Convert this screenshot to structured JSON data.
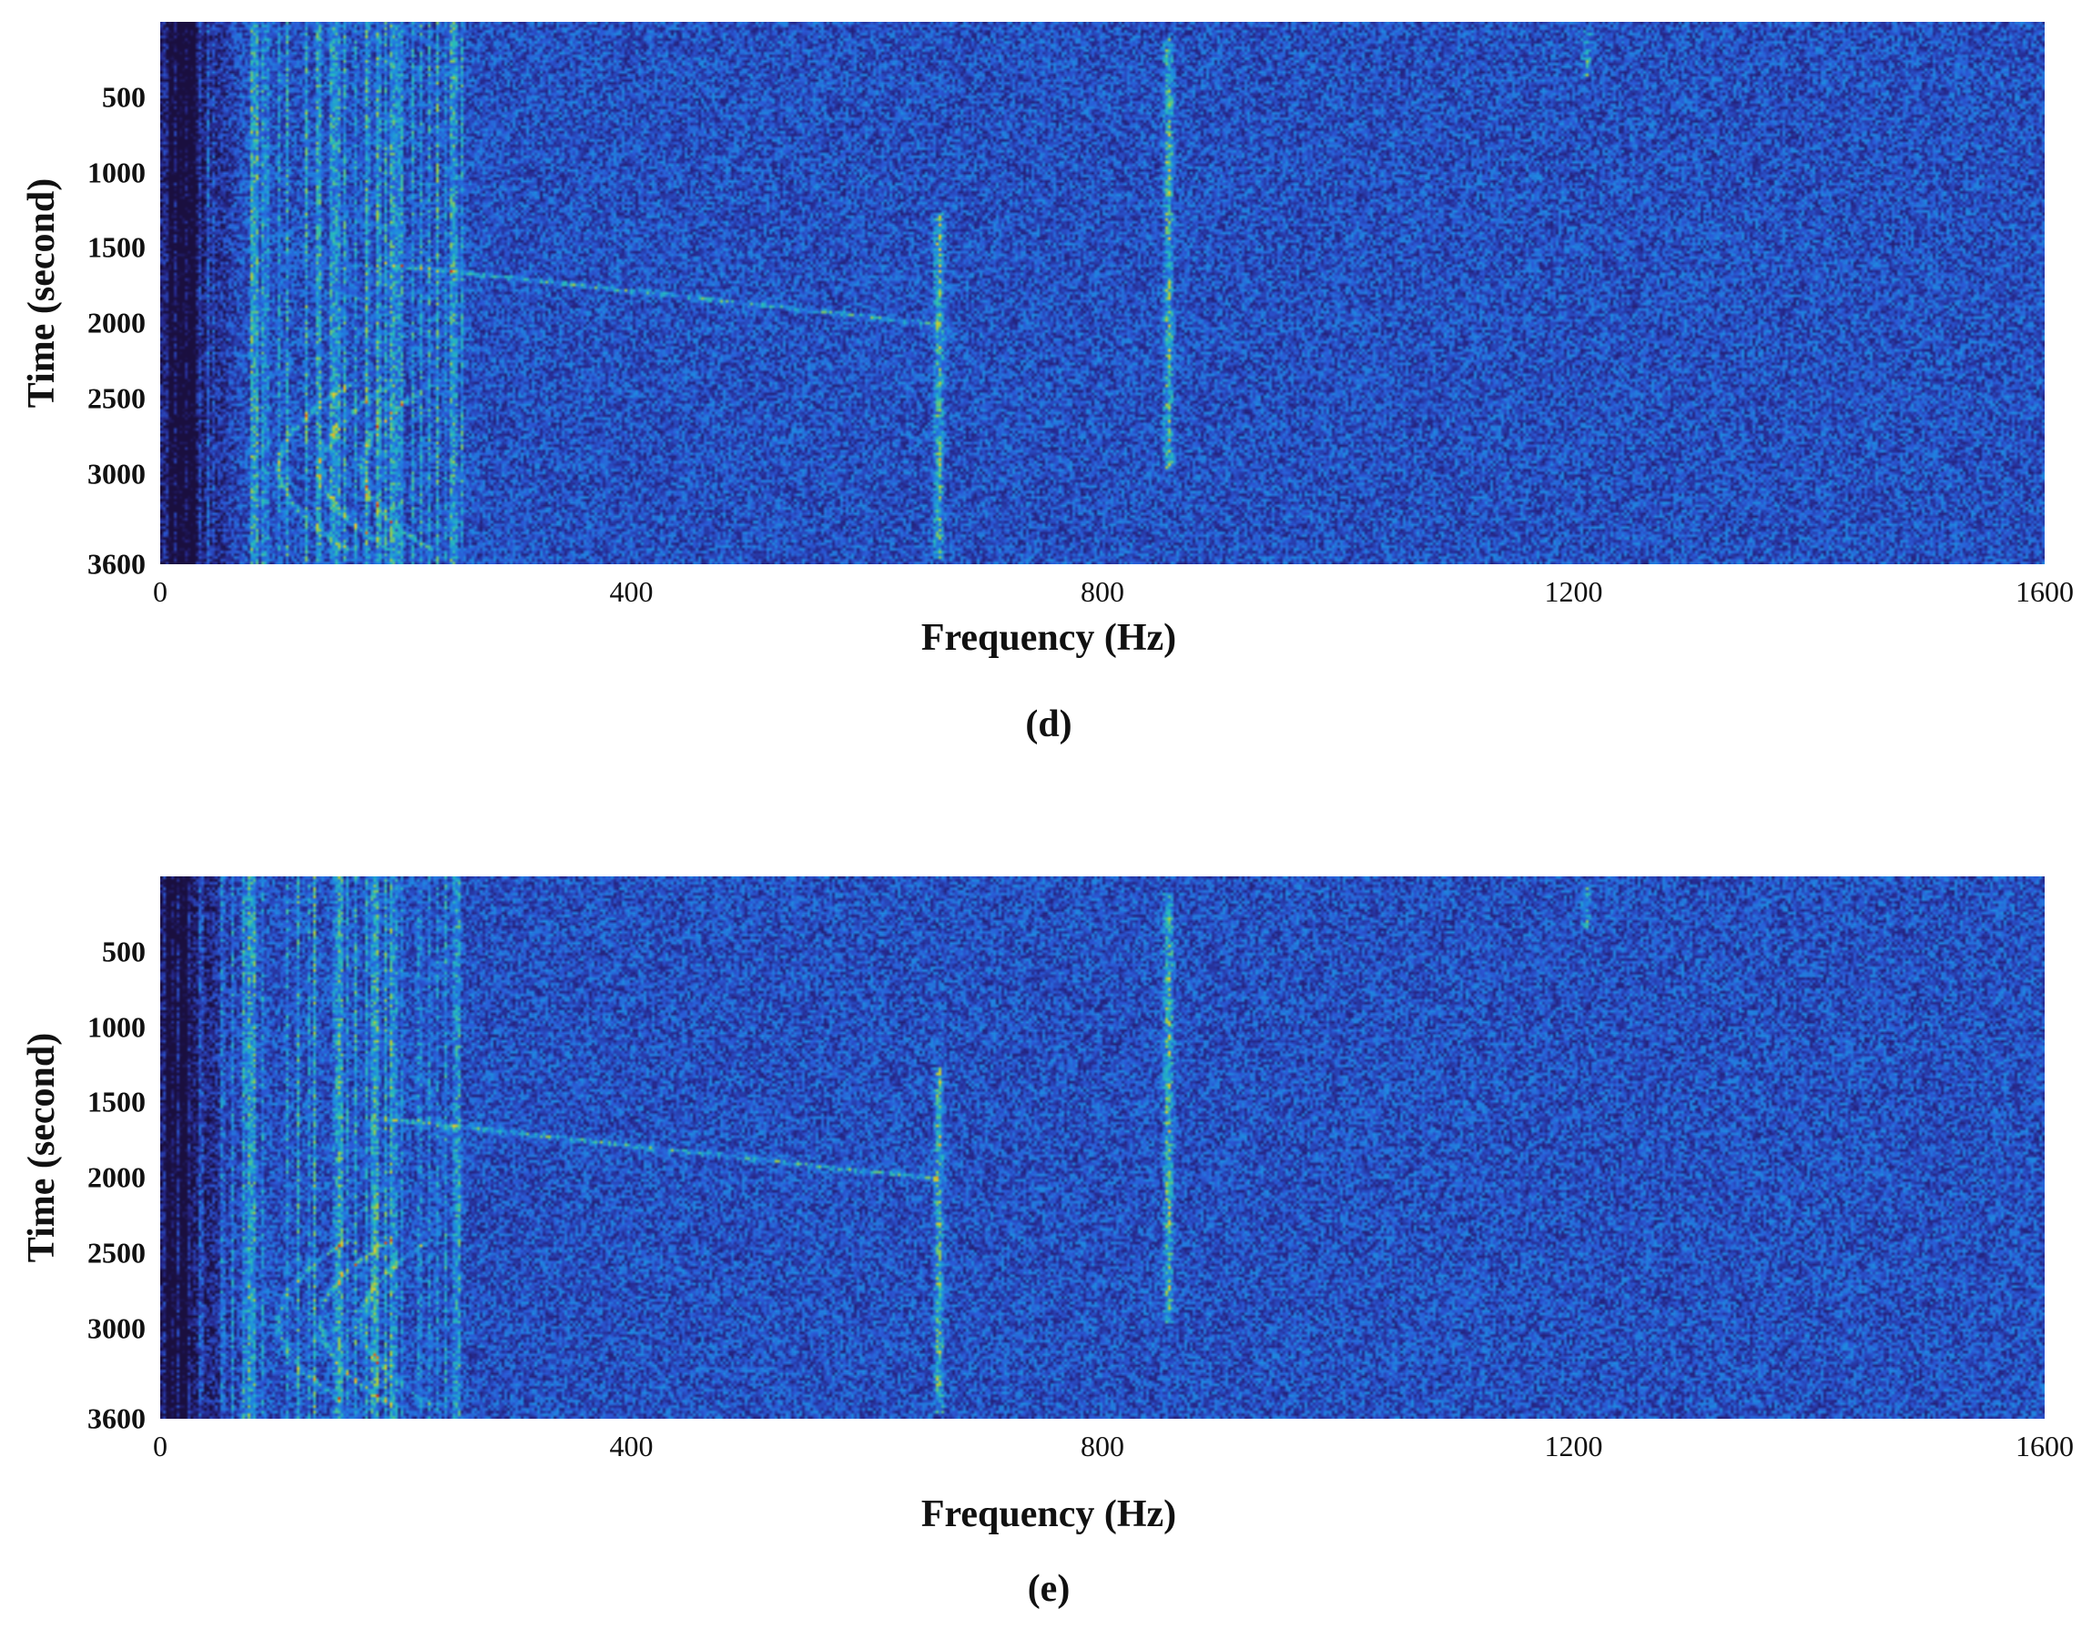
{
  "figure": {
    "panels": [
      {
        "caption": "(d)",
        "xlabel": "Frequency (Hz)",
        "ylabel": "Time (second)"
      },
      {
        "caption": "(e)",
        "xlabel": "Frequency (Hz)",
        "ylabel": "Time (second)"
      }
    ]
  },
  "chart_data": [
    {
      "type": "heatmap",
      "title": "(d)",
      "xlabel": "Frequency (Hz)",
      "ylabel": "Time (second)",
      "xlim": [
        0,
        1600
      ],
      "ylim": [
        0,
        3600
      ],
      "y_reversed": true,
      "xticks": [
        "0",
        "400",
        "800",
        "1200",
        "1600"
      ],
      "yticks": [
        "500",
        "1000",
        "1500",
        "2000",
        "2500",
        "3000",
        "3600"
      ],
      "colormap": "parula",
      "colors": {
        "low": "#1a0f3f",
        "mid": "#2f67d9",
        "high": "#d9341c"
      },
      "features": [
        {
          "kind": "vertical-line",
          "x": 660,
          "y_range": [
            1250,
            3550
          ],
          "intensity": "high"
        },
        {
          "kind": "vertical-line",
          "x": 855,
          "y_range": [
            100,
            2950
          ],
          "intensity": "high"
        },
        {
          "kind": "vertical-line",
          "x": 1210,
          "y_range": [
            50,
            350
          ],
          "intensity": "medium"
        },
        {
          "kind": "sweep-line",
          "from": [
            190,
            1600
          ],
          "to": [
            660,
            2000
          ],
          "intensity": "medium"
        },
        {
          "kind": "arc",
          "vertex_x": 100,
          "y_range": [
            2400,
            3500
          ],
          "intensity": "medium"
        }
      ]
    },
    {
      "type": "heatmap",
      "title": "(e)",
      "xlabel": "Frequency (Hz)",
      "ylabel": "Time (second)",
      "xlim": [
        0,
        1600
      ],
      "ylim": [
        0,
        3600
      ],
      "y_reversed": true,
      "xticks": [
        "0",
        "400",
        "800",
        "1200",
        "1600"
      ],
      "yticks": [
        "500",
        "1000",
        "1500",
        "2000",
        "2500",
        "3000",
        "3600"
      ],
      "colormap": "parula",
      "colors": {
        "low": "#1a0f3f",
        "mid": "#2f67d9",
        "high": "#d9341c"
      },
      "features": [
        {
          "kind": "vertical-line",
          "x": 660,
          "y_range": [
            1250,
            3550
          ],
          "intensity": "high"
        },
        {
          "kind": "vertical-line",
          "x": 855,
          "y_range": [
            100,
            2950
          ],
          "intensity": "high"
        },
        {
          "kind": "vertical-line",
          "x": 1210,
          "y_range": [
            50,
            350
          ],
          "intensity": "medium"
        },
        {
          "kind": "sweep-line",
          "from": [
            190,
            1600
          ],
          "to": [
            660,
            2000
          ],
          "intensity": "medium"
        },
        {
          "kind": "arc",
          "vertex_x": 100,
          "y_range": [
            2400,
            3500
          ],
          "intensity": "medium"
        }
      ]
    }
  ]
}
